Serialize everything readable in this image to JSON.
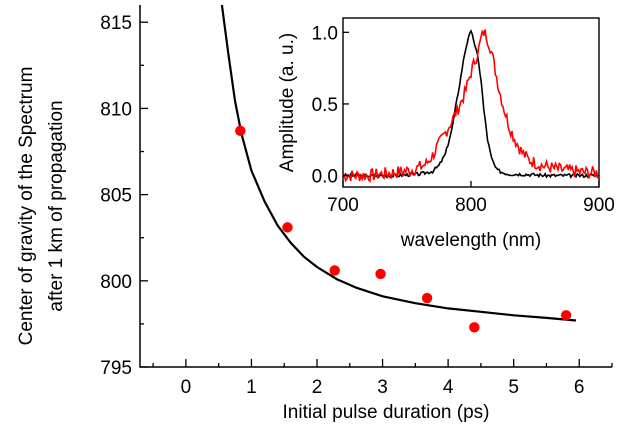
{
  "chart_data": [
    {
      "type": "scatter",
      "xlabel": "Initial pulse duration (ps)",
      "ylabel": [
        "Center of gravity of the Spectrum",
        "after 1 km of propagation"
      ],
      "xlim": [
        -0.7,
        6.5
      ],
      "ylim": [
        795,
        816
      ],
      "xticks": [
        0,
        1,
        2,
        3,
        4,
        5,
        6
      ],
      "yticks": [
        795,
        800,
        805,
        810,
        815
      ],
      "grid": false,
      "colors": {
        "points": "#ff0000",
        "fit": "#000000"
      },
      "series": [
        {
          "kind": "points",
          "x": [
            0.83,
            1.55,
            2.27,
            2.97,
            3.68,
            4.4,
            5.8
          ],
          "y": [
            808.7,
            803.1,
            800.6,
            800.4,
            799.0,
            797.3,
            798.0
          ]
        },
        {
          "kind": "fit-line",
          "x": [
            0.55,
            0.65,
            0.75,
            0.85,
            1.0,
            1.2,
            1.4,
            1.6,
            1.8,
            2.0,
            2.3,
            2.6,
            3.0,
            3.5,
            4.0,
            4.5,
            5.0,
            5.5,
            5.95
          ],
          "y": [
            817.2,
            813.1,
            810.4,
            808.5,
            806.4,
            804.6,
            803.2,
            802.2,
            801.4,
            800.8,
            800.1,
            799.6,
            799.1,
            798.7,
            798.4,
            798.2,
            798.0,
            797.85,
            797.7
          ]
        }
      ]
    },
    {
      "type": "line",
      "xlabel": "wavelength (nm)",
      "ylabel": "Amplitude (a. u.)",
      "xlim": [
        700,
        900
      ],
      "ylim": [
        -0.08,
        1.1
      ],
      "xticks": [
        700,
        800,
        900
      ],
      "yticks": [
        0.0,
        0.5,
        1.0
      ],
      "grid": false,
      "series": [
        {
          "color": "#000000",
          "x": [
            700,
            740,
            760,
            770,
            775,
            780,
            785,
            790,
            795,
            798,
            800,
            802,
            805,
            808,
            810,
            813,
            816,
            820,
            825,
            830,
            840,
            860,
            880,
            900
          ],
          "y": [
            0.0,
            0.0,
            0.01,
            0.03,
            0.07,
            0.15,
            0.32,
            0.58,
            0.85,
            0.97,
            1.0,
            0.95,
            0.84,
            0.66,
            0.46,
            0.25,
            0.12,
            0.04,
            0.02,
            0.01,
            0.01,
            0.0,
            0.0,
            0.0
          ]
        },
        {
          "color": "#ff0000",
          "x": [
            700,
            720,
            740,
            755,
            765,
            770,
            775,
            780,
            785,
            790,
            795,
            800,
            803,
            806,
            808,
            810,
            812,
            815,
            818,
            822,
            826,
            830,
            835,
            840,
            845,
            850,
            855,
            860,
            870,
            880,
            890,
            900
          ],
          "y": [
            0.0,
            0.0,
            0.02,
            0.04,
            0.08,
            0.14,
            0.22,
            0.3,
            0.38,
            0.47,
            0.57,
            0.72,
            0.8,
            0.88,
            0.96,
            1.0,
            0.98,
            0.9,
            0.78,
            0.6,
            0.46,
            0.34,
            0.24,
            0.16,
            0.11,
            0.09,
            0.07,
            0.06,
            0.04,
            0.03,
            0.02,
            0.02
          ]
        }
      ]
    }
  ]
}
